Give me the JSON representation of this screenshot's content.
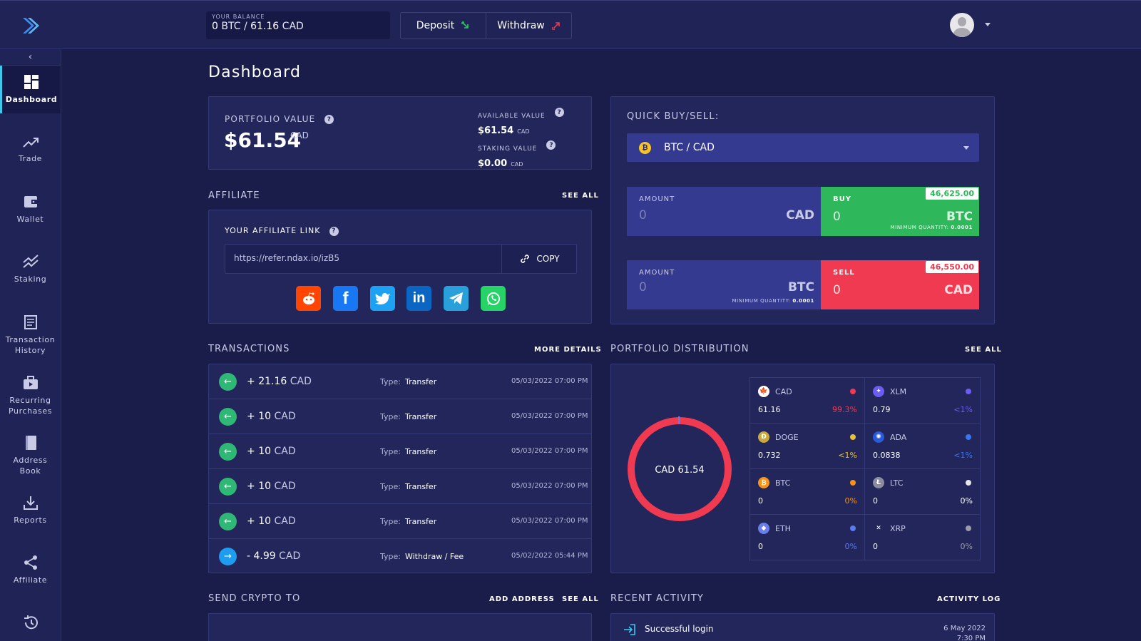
{
  "header": {
    "balance_label": "YOUR BALANCE",
    "balance_btc": "0",
    "balance_btc_unit": "BTC",
    "balance_sep": "/",
    "balance_cad": "61.16",
    "balance_cad_unit": "CAD",
    "deposit_label": "Deposit",
    "withdraw_label": "Withdraw"
  },
  "sidebar": {
    "items": [
      {
        "label": "Dashboard",
        "icon": "dashboard-icon"
      },
      {
        "label": "Trade",
        "icon": "trade-icon"
      },
      {
        "label": "Wallet",
        "icon": "wallet-icon"
      },
      {
        "label": "Staking",
        "icon": "staking-icon"
      },
      {
        "label": "Transaction History",
        "icon": "transaction-history-icon"
      },
      {
        "label": "Recurring Purchases",
        "icon": "recurring-purchases-icon"
      },
      {
        "label": "Address Book",
        "icon": "address-book-icon"
      },
      {
        "label": "Reports",
        "icon": "reports-icon"
      },
      {
        "label": "Affiliate",
        "icon": "affiliate-icon"
      },
      {
        "label": "",
        "icon": "history-icon"
      }
    ]
  },
  "page_title": "Dashboard",
  "portfolio": {
    "label": "PORTFOLIO VALUE",
    "value": "$61.54",
    "currency": "CAD",
    "available_label": "AVAILABLE VALUE",
    "available_value": "$61.54",
    "available_currency": "CAD",
    "staking_label": "STAKING VALUE",
    "staking_value": "$0.00",
    "staking_currency": "CAD"
  },
  "quick": {
    "title": "QUICK BUY/SELL:",
    "pair": "BTC / CAD",
    "amount_label": "AMOUNT",
    "buy": {
      "amount_value": "0",
      "amount_currency": "CAD",
      "label": "BUY",
      "price": "46,625.00",
      "value": "0",
      "currency": "BTC",
      "min_label": "MINIMUM QUANTITY:",
      "min_value": "0.0001"
    },
    "sell": {
      "amount_value": "0",
      "amount_currency": "BTC",
      "min_label": "MINIMUM QUANTITY:",
      "min_value": "0.0001",
      "label": "SELL",
      "price": "46,550.00",
      "value": "0",
      "currency": "CAD"
    }
  },
  "affiliate": {
    "section_title": "AFFILIATE",
    "see_all": "SEE ALL",
    "link_label": "YOUR AFFILIATE LINK",
    "link": "https://refer.ndax.io/izB5",
    "copy_label": "COPY",
    "social": [
      "reddit-icon",
      "facebook-icon",
      "twitter-icon",
      "linkedin-icon",
      "telegram-icon",
      "whatsapp-icon"
    ]
  },
  "transactions": {
    "section_title": "TRANSACTIONS",
    "more_details": "MORE DETAILS",
    "type_label": "Type:",
    "rows": [
      {
        "sign": "+",
        "amount": "21.16",
        "currency": "CAD",
        "type": "Transfer",
        "date": "05/03/2022 07:00 PM",
        "direction": "in"
      },
      {
        "sign": "+",
        "amount": "10",
        "currency": "CAD",
        "type": "Transfer",
        "date": "05/03/2022 07:00 PM",
        "direction": "in"
      },
      {
        "sign": "+",
        "amount": "10",
        "currency": "CAD",
        "type": "Transfer",
        "date": "05/03/2022 07:00 PM",
        "direction": "in"
      },
      {
        "sign": "+",
        "amount": "10",
        "currency": "CAD",
        "type": "Transfer",
        "date": "05/03/2022 07:00 PM",
        "direction": "in"
      },
      {
        "sign": "+",
        "amount": "10",
        "currency": "CAD",
        "type": "Transfer",
        "date": "05/03/2022 07:00 PM",
        "direction": "in"
      },
      {
        "sign": "-",
        "amount": "4.99",
        "currency": "CAD",
        "type": "Withdraw / Fee",
        "date": "05/02/2022 05:44 PM",
        "direction": "out"
      }
    ]
  },
  "distribution": {
    "section_title": "PORTFOLIO DISTRIBUTION",
    "see_all": "SEE ALL",
    "center_label": "CAD 61.54",
    "assets": [
      {
        "name": "CAD",
        "amount": "61.16",
        "pct": "99.3%",
        "color": "#ef3a52",
        "icon": "canada-flag-icon"
      },
      {
        "name": "XLM",
        "amount": "0.79",
        "pct": "<1%",
        "color": "#6c5cf0",
        "icon": "stellar-icon"
      },
      {
        "name": "DOGE",
        "amount": "0.732",
        "pct": "<1%",
        "color": "#e6c23a",
        "icon": "dogecoin-icon"
      },
      {
        "name": "ADA",
        "amount": "0.0838",
        "pct": "<1%",
        "color": "#3a76f0",
        "icon": "cardano-icon"
      },
      {
        "name": "BTC",
        "amount": "0",
        "pct": "0%",
        "color": "#f7931a",
        "icon": "bitcoin-icon"
      },
      {
        "name": "LTC",
        "amount": "0",
        "pct": "0%",
        "color": "#e5e5ea",
        "icon": "litecoin-icon"
      },
      {
        "name": "ETH",
        "amount": "0",
        "pct": "0%",
        "color": "#5b7bf0",
        "icon": "ethereum-icon"
      },
      {
        "name": "XRP",
        "amount": "0",
        "pct": "0%",
        "color": "#9a9caa",
        "icon": "ripple-icon"
      }
    ]
  },
  "send_crypto": {
    "section_title": "SEND CRYPTO TO",
    "add_address": "ADD ADDRESS",
    "see_all": "SEE ALL"
  },
  "recent_activity": {
    "section_title": "RECENT ACTIVITY",
    "activity_log": "ACTIVITY LOG",
    "items": [
      {
        "label": "Successful login",
        "date": "6 May 2022",
        "time": "7:30 PM"
      }
    ]
  }
}
